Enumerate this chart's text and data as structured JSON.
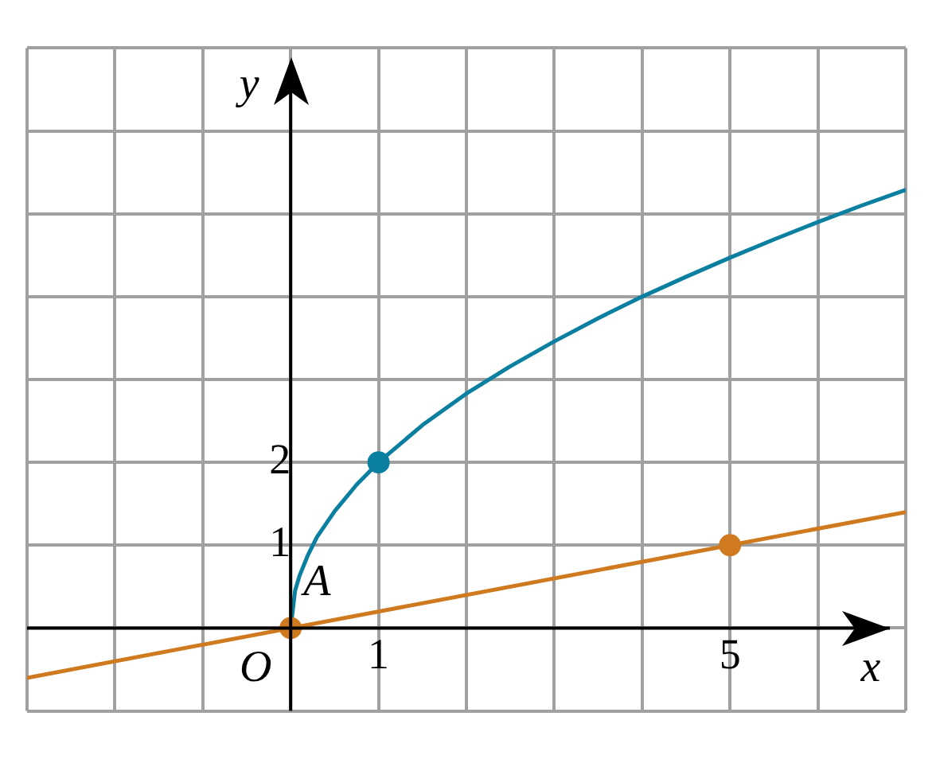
{
  "chart_data": {
    "type": "line",
    "xlabel": "x",
    "ylabel": "y",
    "xlim": [
      -3,
      7
    ],
    "ylim": [
      -1,
      7
    ],
    "xticks": [
      {
        "value": -3,
        "label": null
      },
      {
        "value": -2,
        "label": null
      },
      {
        "value": -1,
        "label": null
      },
      {
        "value": 0,
        "label": null
      },
      1,
      {
        "value": 2,
        "label": null
      },
      {
        "value": 3,
        "label": null
      },
      {
        "value": 4,
        "label": null
      },
      5,
      {
        "value": 6,
        "label": null
      },
      {
        "value": 7,
        "label": null
      }
    ],
    "yticks": [
      {
        "value": -1,
        "label": null
      },
      {
        "value": 0,
        "label": null
      },
      1,
      2,
      {
        "value": 3,
        "label": null
      },
      {
        "value": 4,
        "label": null
      },
      {
        "value": 5,
        "label": null
      },
      {
        "value": 6,
        "label": null
      },
      {
        "value": 7,
        "label": null
      }
    ],
    "grid": true,
    "legend": false,
    "marker": "none",
    "line_style": "solid",
    "series": [
      {
        "color": "#0a7fa0",
        "x": [
          0,
          0.05,
          0.1,
          0.2,
          0.3,
          0.5,
          0.75,
          1,
          1.5,
          2,
          2.5,
          3,
          3.5,
          4,
          4.5,
          5,
          5.5,
          6,
          6.5,
          7
        ],
        "values": [
          0,
          0.45,
          0.63,
          0.89,
          1.1,
          1.41,
          1.73,
          2,
          2.45,
          2.83,
          3.16,
          3.46,
          3.74,
          4,
          4.24,
          4.47,
          4.69,
          4.9,
          5.1,
          5.29
        ]
      },
      {
        "color": "#d07a20",
        "x": [
          -3,
          7
        ],
        "values": [
          -0.6,
          1.4
        ]
      },
      {
        "type": "scatter",
        "color": "#0a7fa0",
        "marker": "circle",
        "x": [
          1
        ],
        "values": [
          2
        ]
      },
      {
        "type": "scatter",
        "color": "#d07a20",
        "marker": "circle",
        "x": [
          0,
          5
        ],
        "values": [
          0,
          1
        ]
      }
    ],
    "annotations": [
      {
        "text": "O",
        "x": 0,
        "y": 0
      },
      {
        "text": "A",
        "x": 0,
        "y": 0
      }
    ]
  }
}
